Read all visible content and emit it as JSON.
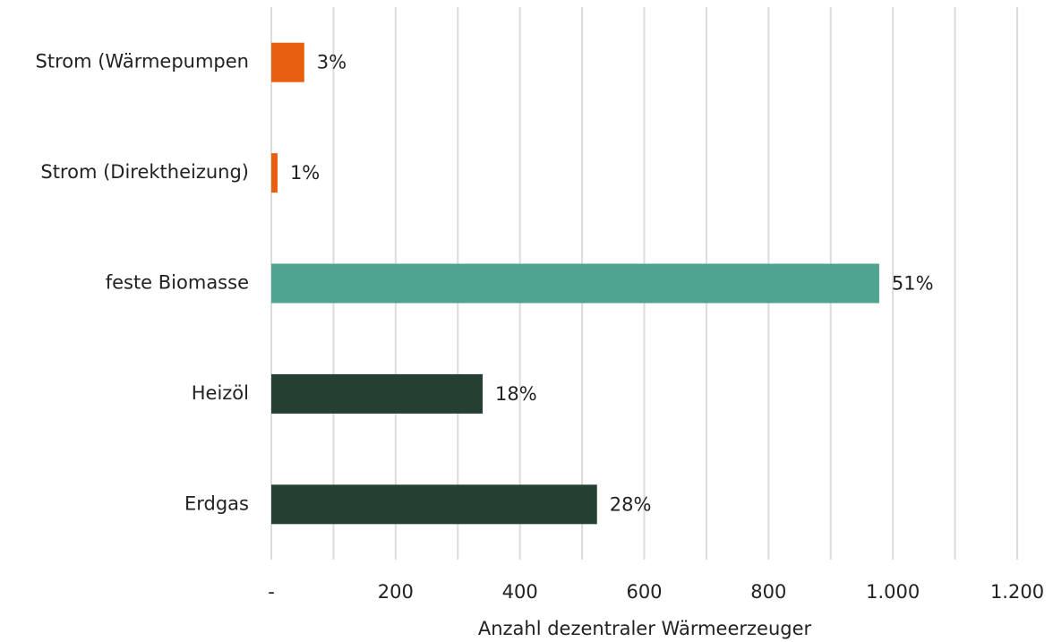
{
  "chart_data": {
    "type": "bar",
    "orientation": "horizontal",
    "categories": [
      "Strom (Wärmepumpen",
      "Strom (Direktheizung)",
      "feste Biomasse",
      "Heizöl",
      "Erdgas"
    ],
    "values": [
      53,
      10,
      978,
      340,
      524
    ],
    "data_labels": [
      "3%",
      "1%",
      "51%",
      "18%",
      "28%"
    ],
    "colors": [
      "#e8600f",
      "#e8600f",
      "#4ea391",
      "#263f33",
      "#263f33"
    ],
    "xlabel": "Anzahl dezentraler Wärmeerzeuger",
    "xlim": [
      0,
      1200
    ],
    "xticks": [
      {
        "value": 0,
        "label": "-"
      },
      200,
      400,
      600,
      800,
      {
        "value": 1000,
        "label": "1.000"
      },
      {
        "value": 1200,
        "label": "1.200"
      }
    ],
    "minor_xticks": [
      100,
      300,
      500,
      700,
      900,
      1100
    ],
    "grid": true
  }
}
